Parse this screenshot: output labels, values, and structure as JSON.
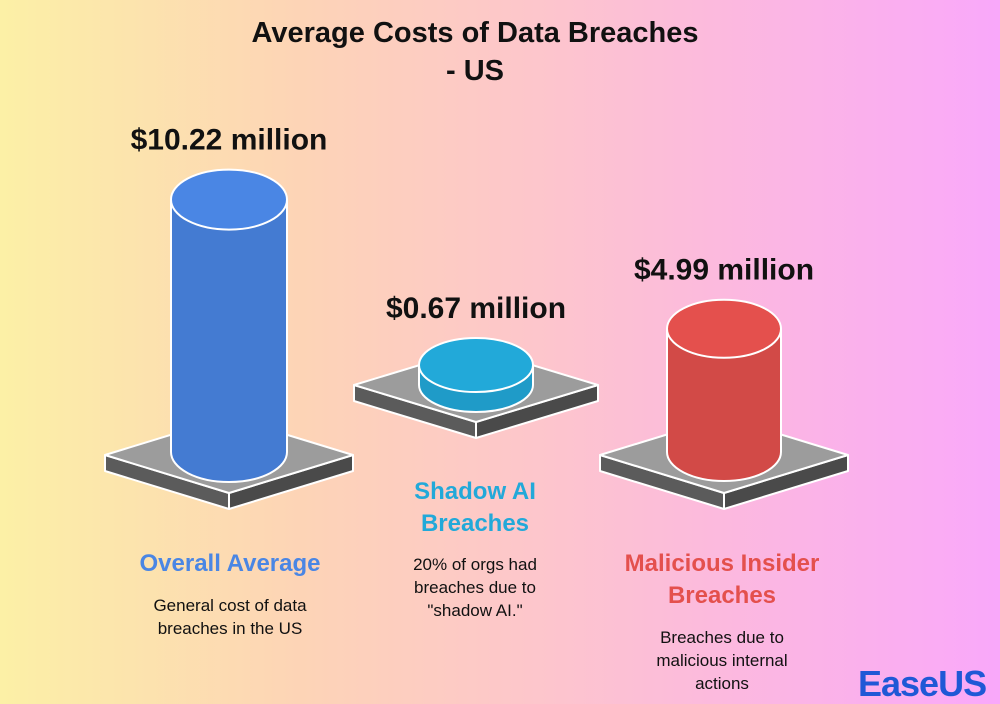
{
  "title_line1": "Average Costs of Data Breaches",
  "title_line2": "- US",
  "chart_data": {
    "type": "bar",
    "title": "Average Costs of Data Breaches - US",
    "unit": "million USD",
    "categories": [
      "Overall Average",
      "Shadow AI Breaches",
      "Malicious Insider Breaches"
    ],
    "values": [
      10.22,
      0.67,
      4.99
    ],
    "value_labels": [
      "$10.22 million",
      "$0.67 million",
      "$4.99 million"
    ],
    "descriptions": [
      [
        "General cost of data",
        "breaches in the US"
      ],
      [
        "20% of orgs had",
        "breaches due to",
        "\"shadow AI.\""
      ],
      [
        "Breaches due to",
        "malicious internal",
        "actions"
      ]
    ],
    "category_lines": [
      [
        "Overall Average"
      ],
      [
        "Shadow AI",
        "Breaches"
      ],
      [
        "Malicious Insider",
        "Breaches"
      ]
    ],
    "colors": [
      "#4a86e4",
      "#22a9d9",
      "#e4504d"
    ]
  },
  "logo": "EaseUS"
}
